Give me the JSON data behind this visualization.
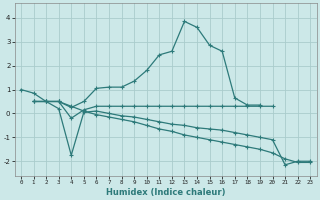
{
  "xlabel": "Humidex (Indice chaleur)",
  "bg_color": "#cce8e8",
  "grid_color": "#aacccc",
  "line_color": "#2d7a7a",
  "xlim": [
    -0.5,
    23.5
  ],
  "ylim": [
    -2.6,
    4.6
  ],
  "xticks": [
    0,
    1,
    2,
    3,
    4,
    5,
    6,
    7,
    8,
    9,
    10,
    11,
    12,
    13,
    14,
    15,
    16,
    17,
    18,
    19,
    20,
    21,
    22,
    23
  ],
  "yticks": [
    -2,
    -1,
    0,
    1,
    2,
    3,
    4
  ],
  "series1_x": [
    0,
    1,
    2,
    3,
    4,
    5,
    6,
    7,
    8,
    9,
    10,
    11,
    12,
    13,
    14,
    15,
    16,
    17,
    18,
    19
  ],
  "series1_y": [
    1.0,
    0.85,
    0.5,
    0.5,
    0.25,
    0.5,
    1.05,
    1.1,
    1.1,
    1.35,
    1.8,
    2.45,
    2.6,
    3.85,
    3.6,
    2.85,
    2.6,
    0.65,
    0.35,
    0.35
  ],
  "series2_x": [
    1,
    2,
    3,
    4,
    5,
    6,
    7,
    8,
    9,
    10,
    11,
    12,
    13,
    14,
    15,
    16,
    17,
    18,
    19,
    20
  ],
  "series2_y": [
    0.5,
    0.5,
    0.5,
    -0.2,
    0.15,
    0.3,
    0.3,
    0.3,
    0.3,
    0.3,
    0.3,
    0.3,
    0.3,
    0.3,
    0.3,
    0.3,
    0.3,
    0.3,
    0.3,
    0.3
  ],
  "series3_x": [
    1,
    2,
    3,
    4,
    5,
    6,
    7,
    8,
    9,
    10,
    11,
    12,
    13,
    14,
    15,
    16,
    17,
    18,
    19,
    20,
    21,
    22,
    23
  ],
  "series3_y": [
    0.5,
    0.5,
    0.2,
    -1.75,
    0.05,
    0.1,
    0.0,
    -0.1,
    -0.15,
    -0.25,
    -0.35,
    -0.45,
    -0.5,
    -0.6,
    -0.65,
    -0.7,
    -0.8,
    -0.9,
    -1.0,
    -1.1,
    -2.15,
    -2.0,
    -2.0
  ],
  "series4_x": [
    1,
    2,
    3,
    4,
    5,
    6,
    7,
    8,
    9,
    10,
    11,
    12,
    13,
    14,
    15,
    16,
    17,
    18,
    19,
    20,
    21,
    22,
    23
  ],
  "series4_y": [
    0.5,
    0.5,
    0.5,
    0.3,
    0.1,
    -0.05,
    -0.15,
    -0.25,
    -0.35,
    -0.5,
    -0.65,
    -0.75,
    -0.9,
    -1.0,
    -1.1,
    -1.2,
    -1.3,
    -1.4,
    -1.5,
    -1.65,
    -1.9,
    -2.05,
    -2.05
  ]
}
